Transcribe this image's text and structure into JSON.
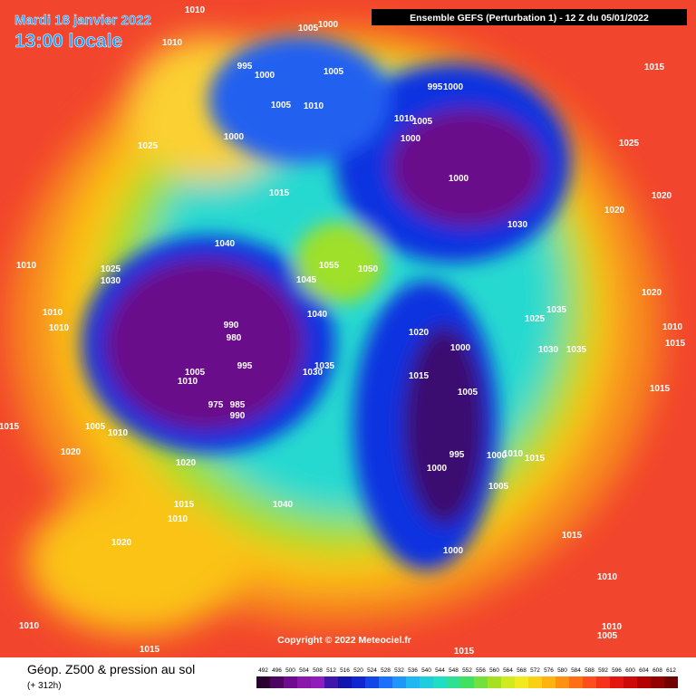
{
  "header": {
    "date": "Mardi 18 janvier 2022",
    "time": "13:00 locale",
    "run": "Ensemble GEFS  (Perturbation 1)  -  12 Z du 05/01/2022"
  },
  "footer": {
    "title": "Géop. Z500 & pression au sol",
    "lead": "(+ 312h)",
    "copyright": "Copyright © 2022 Meteociel.fr"
  },
  "legend": {
    "levels": [
      "492",
      "496",
      "500",
      "504",
      "508",
      "512",
      "516",
      "520",
      "524",
      "528",
      "532",
      "536",
      "540",
      "544",
      "548",
      "552",
      "556",
      "560",
      "564",
      "568",
      "572",
      "576",
      "580",
      "584",
      "588",
      "592",
      "596",
      "600",
      "604",
      "608",
      "612"
    ]
  },
  "isobar_labels": [
    "1010",
    "1010",
    "1005",
    "1000",
    "995",
    "1000",
    "1005",
    "1005",
    "1010",
    "1000",
    "1025",
    "995",
    "1000",
    "1010",
    "1005",
    "1000",
    "1000",
    "1015",
    "1025",
    "1020",
    "1020",
    "1030",
    "1015",
    "1040",
    "1055",
    "1050",
    "1045",
    "1025",
    "1030",
    "1010",
    "1010",
    "1010",
    "1040",
    "990",
    "980",
    "995",
    "1035",
    "1030",
    "1005",
    "1010",
    "975",
    "985",
    "990",
    "1020",
    "1000",
    "1015",
    "1005",
    "1035",
    "1025",
    "1030",
    "1035",
    "1020",
    "1010",
    "1015",
    "1015",
    "995",
    "1000",
    "1000",
    "1010",
    "1015",
    "1005",
    "1000",
    "1015",
    "1010",
    "1010",
    "1005",
    "1015",
    "1005",
    "1010",
    "1020",
    "1020",
    "1015",
    "1010",
    "1040",
    "1020",
    "1010",
    "1015",
    "1015"
  ]
}
